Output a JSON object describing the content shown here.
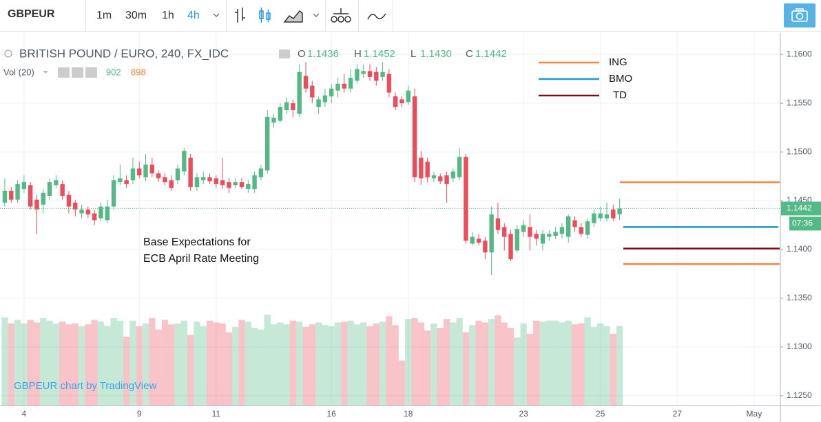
{
  "toolbar": {
    "symbol": "GBPEUR",
    "intervals": [
      "1m",
      "30m",
      "1h",
      "4h"
    ],
    "active_interval": 3
  },
  "chart_data": {
    "type": "candlestick",
    "title": "BRITISH POUND / EURO, 240, FX_IDC",
    "ohlc_legend": [
      {
        "key": "O",
        "text": "1.1436"
      },
      {
        "key": "H",
        "text": "1.1452"
      },
      {
        "key": "L",
        "text": "1.1430"
      },
      {
        "key": "C",
        "text": "1.1442"
      }
    ],
    "volume_legend": {
      "label": "Vol (20)",
      "values": [
        902,
        898
      ]
    },
    "annotation": [
      "Base Expectations for",
      "ECB April Rate Meeting"
    ],
    "watermark": "GBPEUR chart by TradingView",
    "up_color": "#53b987",
    "down_color": "#eb4d5c",
    "open": [
      1.1448,
      1.146,
      1.1451,
      1.1462,
      1.1466,
      1.1451,
      1.1446,
      1.1455,
      1.1466,
      1.1467,
      1.1456,
      1.1448,
      1.1437,
      1.1441,
      1.1437,
      1.1432,
      1.143,
      1.1444,
      1.1469,
      1.1471,
      1.1471,
      1.1483,
      1.1474,
      1.1487,
      1.1478,
      1.1474,
      1.1471,
      1.1471,
      1.148,
      1.1494,
      1.1464,
      1.1471,
      1.1474,
      1.1473,
      1.1471,
      1.1469,
      1.1466,
      1.1469,
      1.1462,
      1.1462,
      1.1474,
      1.1481,
      1.153,
      1.1532,
      1.1543,
      1.155,
      1.1539,
      1.1578,
      1.1568,
      1.1546,
      1.1551,
      1.1557,
      1.1563,
      1.157,
      1.1565,
      1.1573,
      1.158,
      1.1583,
      1.1582,
      1.1577,
      1.158,
      1.1557,
      1.1554,
      1.1551,
      1.1557,
      1.1494,
      1.149,
      1.1473,
      1.1475,
      1.1476,
      1.1473,
      1.1474,
      1.1495,
      1.1406,
      1.1411,
      1.1409,
      1.1397,
      1.1432,
      1.1423,
      1.1416,
      1.1399,
      1.1418,
      1.1423,
      1.1416,
      1.1406,
      1.1413,
      1.1414,
      1.1416,
      1.1413,
      1.143,
      1.1423,
      1.1415,
      1.1427,
      1.1432,
      1.1432,
      1.1441,
      1.1436
    ],
    "high": [
      1.1473,
      1.1464,
      1.1471,
      1.1476,
      1.1469,
      1.1456,
      1.1462,
      1.1473,
      1.1476,
      1.1471,
      1.146,
      1.1451,
      1.1446,
      1.1444,
      1.1441,
      1.1448,
      1.1451,
      1.1476,
      1.1487,
      1.1476,
      1.1494,
      1.149,
      1.1498,
      1.1494,
      1.1481,
      1.1478,
      1.1476,
      1.1487,
      1.1504,
      1.1498,
      1.1478,
      1.148,
      1.1478,
      1.1476,
      1.1494,
      1.1473,
      1.1473,
      1.1473,
      1.1471,
      1.148,
      1.1487,
      1.1543,
      1.1539,
      1.155,
      1.1556,
      1.1554,
      1.159,
      1.1592,
      1.1573,
      1.1557,
      1.1565,
      1.157,
      1.1576,
      1.158,
      1.1585,
      1.159,
      1.159,
      1.159,
      1.1587,
      1.1592,
      1.1585,
      1.1561,
      1.1557,
      1.1568,
      1.1565,
      1.1501,
      1.1494,
      1.148,
      1.1478,
      1.148,
      1.1483,
      1.1504,
      1.1498,
      1.1418,
      1.1416,
      1.1413,
      1.1444,
      1.1448,
      1.1427,
      1.142,
      1.1425,
      1.143,
      1.1436,
      1.142,
      1.142,
      1.142,
      1.1423,
      1.1427,
      1.1436,
      1.1434,
      1.1427,
      1.1432,
      1.1441,
      1.1444,
      1.1448,
      1.1446,
      1.1452
    ],
    "low": [
      1.1444,
      1.1448,
      1.1448,
      1.1458,
      1.1441,
      1.1416,
      1.1437,
      1.1451,
      1.1463,
      1.1451,
      1.1437,
      1.1434,
      1.1432,
      1.1432,
      1.1425,
      1.1429,
      1.1427,
      1.1441,
      1.1466,
      1.1463,
      1.1467,
      1.1473,
      1.147,
      1.1474,
      1.1469,
      1.1466,
      1.146,
      1.1467,
      1.1476,
      1.146,
      1.146,
      1.1467,
      1.1467,
      1.1463,
      1.1462,
      1.1458,
      1.1463,
      1.1462,
      1.1458,
      1.1458,
      1.1471,
      1.1478,
      1.1525,
      1.153,
      1.1539,
      1.1536,
      1.1536,
      1.1561,
      1.155,
      1.1539,
      1.1546,
      1.155,
      1.1556,
      1.1561,
      1.1561,
      1.157,
      1.1576,
      1.1573,
      1.1568,
      1.1573,
      1.1556,
      1.1543,
      1.1546,
      1.1548,
      1.1469,
      1.1466,
      1.1469,
      1.1469,
      1.1467,
      1.1448,
      1.1469,
      1.1471,
      1.1406,
      1.1404,
      1.1404,
      1.139,
      1.1374,
      1.1416,
      1.1399,
      1.1388,
      1.1397,
      1.1413,
      1.1399,
      1.1404,
      1.1399,
      1.1409,
      1.1411,
      1.1411,
      1.1407,
      1.1418,
      1.1413,
      1.1411,
      1.1423,
      1.1429,
      1.1429,
      1.1429,
      1.143
    ],
    "close": [
      1.146,
      1.1451,
      1.1467,
      1.1469,
      1.1444,
      1.1441,
      1.1458,
      1.1469,
      1.1471,
      1.1455,
      1.1444,
      1.1441,
      1.1441,
      1.1436,
      1.143,
      1.1444,
      1.1444,
      1.1471,
      1.1473,
      1.1467,
      1.1483,
      1.1476,
      1.1487,
      1.1478,
      1.1473,
      1.1469,
      1.1463,
      1.1483,
      1.1501,
      1.1464,
      1.1474,
      1.1474,
      1.147,
      1.1467,
      1.1466,
      1.1463,
      1.1469,
      1.1464,
      1.1467,
      1.1476,
      1.1483,
      1.1536,
      1.1535,
      1.1546,
      1.1551,
      1.1543,
      1.1582,
      1.1565,
      1.1556,
      1.1554,
      1.1558,
      1.1565,
      1.157,
      1.1565,
      1.1576,
      1.1585,
      1.1583,
      1.1577,
      1.1573,
      1.1582,
      1.1561,
      1.1546,
      1.155,
      1.1563,
      1.1474,
      1.1473,
      1.1474,
      1.1476,
      1.147,
      1.1467,
      1.148,
      1.1495,
      1.1409,
      1.1413,
      1.1407,
      1.1397,
      1.1436,
      1.142,
      1.1413,
      1.139,
      1.1421,
      1.1425,
      1.1413,
      1.1411,
      1.1416,
      1.1416,
      1.1418,
      1.1423,
      1.1434,
      1.1423,
      1.1416,
      1.1429,
      1.1437,
      1.1437,
      1.1436,
      1.1432,
      1.1442
    ],
    "volume": [
      1000,
      930,
      970,
      930,
      970,
      940,
      990,
      960,
      930,
      950,
      920,
      930,
      900,
      920,
      970,
      950,
      900,
      990,
      960,
      780,
      960,
      900,
      930,
      990,
      860,
      970,
      920,
      930,
      960,
      800,
      950,
      900,
      960,
      940,
      930,
      830,
      890,
      970,
      950,
      880,
      860,
      1030,
      920,
      940,
      920,
      960,
      950,
      890,
      920,
      940,
      910,
      900,
      940,
      950,
      960,
      920,
      940,
      900,
      930,
      950,
      1010,
      910,
      510,
      980,
      990,
      940,
      850,
      930,
      880,
      980,
      940,
      990,
      830,
      910,
      960,
      940,
      980,
      1020,
      940,
      880,
      770,
      930,
      810,
      960,
      950,
      960,
      960,
      940,
      960,
      920,
      930,
      1000,
      890,
      930,
      900,
      810,
      902
    ],
    "volume_ylim": [
      0,
      4220
    ],
    "xlim": [
      -0.75,
      121.1
    ],
    "xticks": [
      {
        "value": 3,
        "label": "4"
      },
      {
        "value": 21,
        "label": "9"
      },
      {
        "value": 33,
        "label": "11"
      },
      {
        "value": 51,
        "label": "16"
      },
      {
        "value": 63,
        "label": "18"
      },
      {
        "value": 81,
        "label": "23"
      },
      {
        "value": 93,
        "label": "25"
      },
      {
        "value": 105,
        "label": "27"
      },
      {
        "value": 117,
        "label": "May"
      }
    ],
    "ylim": [
      1.124,
      1.1622
    ],
    "yticks": [
      {
        "value": 1.125,
        "label": "1.1250"
      },
      {
        "value": 1.13,
        "label": "1.1300"
      },
      {
        "value": 1.135,
        "label": "1.1350"
      },
      {
        "value": 1.14,
        "label": "1.1400"
      },
      {
        "value": 1.145,
        "label": "1.1450"
      },
      {
        "value": 1.15,
        "label": "1.1500"
      },
      {
        "value": 1.155,
        "label": "1.1550"
      },
      {
        "value": 1.16,
        "label": "1.1600"
      }
    ],
    "last_price": {
      "value": 1.1442,
      "label": "1.1442"
    },
    "countdown": "07:36",
    "levels": [
      {
        "name": "ING",
        "color": "#f5853f",
        "values": [
          1.1469,
          1.1385
        ]
      },
      {
        "name": "BMO",
        "color": "#2196c8",
        "values": [
          1.1423
        ]
      },
      {
        "name": "TD",
        "color": "#7b0a15",
        "values": [
          1.1401
        ]
      }
    ],
    "grid": true
  }
}
